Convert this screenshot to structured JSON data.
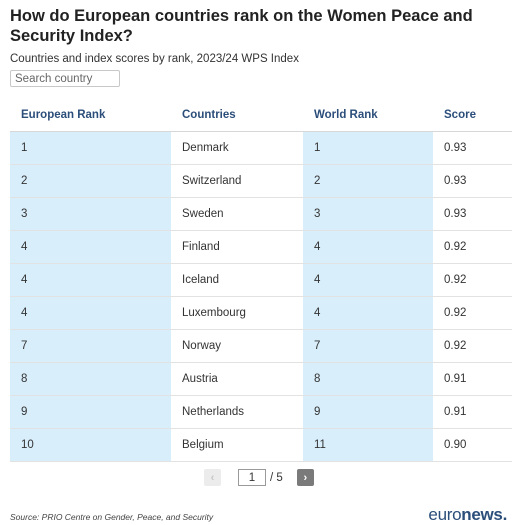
{
  "header": {
    "title": "How do European countries rank on the Women Peace and Security Index?",
    "subtitle": "Countries and index scores by rank, 2023/24 WPS Index"
  },
  "search": {
    "placeholder": "Search country",
    "value": ""
  },
  "table": {
    "columns": [
      "European Rank",
      "Countries",
      "World Rank",
      "Score"
    ],
    "rows": [
      [
        "1",
        "Denmark",
        "1",
        "0.93"
      ],
      [
        "2",
        "Switzerland",
        "2",
        "0.93"
      ],
      [
        "3",
        "Sweden",
        "3",
        "0.93"
      ],
      [
        "4",
        "Finland",
        "4",
        "0.92"
      ],
      [
        "4",
        "Iceland",
        "4",
        "0.92"
      ],
      [
        "4",
        "Luxembourg",
        "4",
        "0.92"
      ],
      [
        "7",
        "Norway",
        "7",
        "0.92"
      ],
      [
        "8",
        "Austria",
        "8",
        "0.91"
      ],
      [
        "9",
        "Netherlands",
        "9",
        "0.91"
      ],
      [
        "10",
        "Belgium",
        "11",
        "0.90"
      ]
    ],
    "highlight_color": "#d9eefb",
    "header_color": "#2b4e7a"
  },
  "pagination": {
    "prev_icon": "chevron-left-icon",
    "next_icon": "chevron-right-icon",
    "current_page": "1",
    "total_label": "/ 5"
  },
  "footer": {
    "source": "Source: PRIO Centre on Gender, Peace, and Security",
    "logo_part1": "euro",
    "logo_part2": "news."
  }
}
